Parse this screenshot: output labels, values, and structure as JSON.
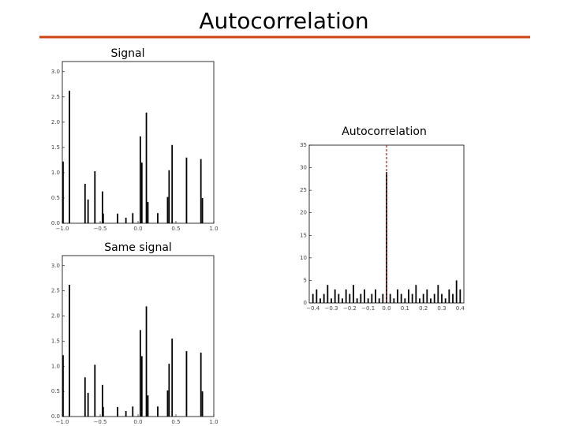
{
  "title": "Autocorrelation",
  "chart_data": [
    {
      "type": "stem",
      "title": "Signal",
      "color": "#000000",
      "x": [
        -0.99,
        -0.906,
        -0.7,
        -0.66,
        -0.57,
        -0.47,
        -0.46,
        -0.27,
        -0.16,
        -0.07,
        0.03,
        0.05,
        0.11,
        0.13,
        0.26,
        0.39,
        0.41,
        0.45,
        0.64,
        0.83,
        0.85
      ],
      "values": [
        1.22,
        2.62,
        0.78,
        0.47,
        1.03,
        0.63,
        0.19,
        0.19,
        0.11,
        0.2,
        1.72,
        1.2,
        2.19,
        0.42,
        0.2,
        0.52,
        1.05,
        1.55,
        1.3,
        1.27,
        0.5
      ],
      "xlim": [
        -1,
        1
      ],
      "ylim": [
        0,
        3.2
      ],
      "xticks": [
        {
          "value": -1,
          "label": "−1.0"
        },
        {
          "value": -0.5,
          "label": "−0.5"
        },
        {
          "value": 0,
          "label": "0.0"
        },
        {
          "value": 0.5,
          "label": "0.5"
        },
        {
          "value": 1,
          "label": "1.0"
        }
      ],
      "yticks": [
        {
          "value": 0,
          "label": "0.0"
        },
        0.5,
        {
          "value": 1,
          "label": "1.0"
        },
        1.5,
        {
          "value": 2,
          "label": "2.0"
        },
        2.5,
        {
          "value": 3,
          "label": "3.0"
        }
      ]
    },
    {
      "type": "stem",
      "title": "Same signal",
      "color": "#000000",
      "x": [
        -0.99,
        -0.906,
        -0.7,
        -0.66,
        -0.57,
        -0.47,
        -0.46,
        -0.27,
        -0.16,
        -0.07,
        0.03,
        0.05,
        0.11,
        0.13,
        0.26,
        0.39,
        0.41,
        0.45,
        0.64,
        0.83,
        0.85
      ],
      "values": [
        1.22,
        2.62,
        0.78,
        0.47,
        1.03,
        0.63,
        0.19,
        0.19,
        0.11,
        0.2,
        1.72,
        1.2,
        2.19,
        0.42,
        0.2,
        0.52,
        1.05,
        1.55,
        1.3,
        1.27,
        0.5
      ],
      "xlim": [
        -1,
        1
      ],
      "ylim": [
        0,
        3.2
      ],
      "xticks": [
        {
          "value": -1,
          "label": "−1.0"
        },
        {
          "value": -0.5,
          "label": "−0.5"
        },
        {
          "value": 0,
          "label": "0.0"
        },
        {
          "value": 0.5,
          "label": "0.5"
        },
        {
          "value": 1,
          "label": "1.0"
        }
      ],
      "yticks": [
        {
          "value": 0,
          "label": "0.0"
        },
        0.5,
        {
          "value": 1,
          "label": "1.0"
        },
        1.5,
        {
          "value": 2,
          "label": "2.0"
        },
        2.5,
        {
          "value": 3,
          "label": "3.0"
        }
      ]
    },
    {
      "type": "stem",
      "title": "Autocorrelation",
      "color": "#000000",
      "x": [
        -0.4,
        -0.38,
        -0.36,
        -0.34,
        -0.32,
        -0.3,
        -0.28,
        -0.26,
        -0.24,
        -0.22,
        -0.2,
        -0.18,
        -0.16,
        -0.14,
        -0.12,
        -0.1,
        -0.08,
        -0.06,
        -0.04,
        -0.02,
        0,
        0.02,
        0.04,
        0.06,
        0.08,
        0.1,
        0.12,
        0.14,
        0.16,
        0.18,
        0.2,
        0.22,
        0.24,
        0.26,
        0.28,
        0.3,
        0.32,
        0.34,
        0.36,
        0.38,
        0.4
      ],
      "values": [
        2,
        3,
        1,
        2,
        4,
        1,
        3,
        2,
        1,
        3,
        2,
        4,
        1,
        2,
        3,
        1,
        2,
        3,
        1,
        2,
        29,
        2,
        1,
        3,
        2,
        1,
        3,
        2,
        4,
        1,
        2,
        3,
        1,
        2,
        4,
        2,
        1,
        3,
        2,
        5,
        3
      ],
      "vline": 0,
      "vline_color": "#b02020",
      "xlim": [
        -0.42,
        0.42
      ],
      "ylim": [
        0,
        35
      ],
      "xticks": [
        {
          "value": -0.4,
          "label": "−0.4"
        },
        {
          "value": -0.3,
          "label": "−0.3"
        },
        {
          "value": -0.2,
          "label": "−0.2"
        },
        {
          "value": -0.1,
          "label": "−0.1"
        },
        {
          "value": 0,
          "label": "0.0"
        },
        0.1,
        0.2,
        0.3,
        0.4
      ],
      "yticks": [
        0,
        5,
        10,
        15,
        20,
        25,
        30,
        35
      ]
    }
  ]
}
